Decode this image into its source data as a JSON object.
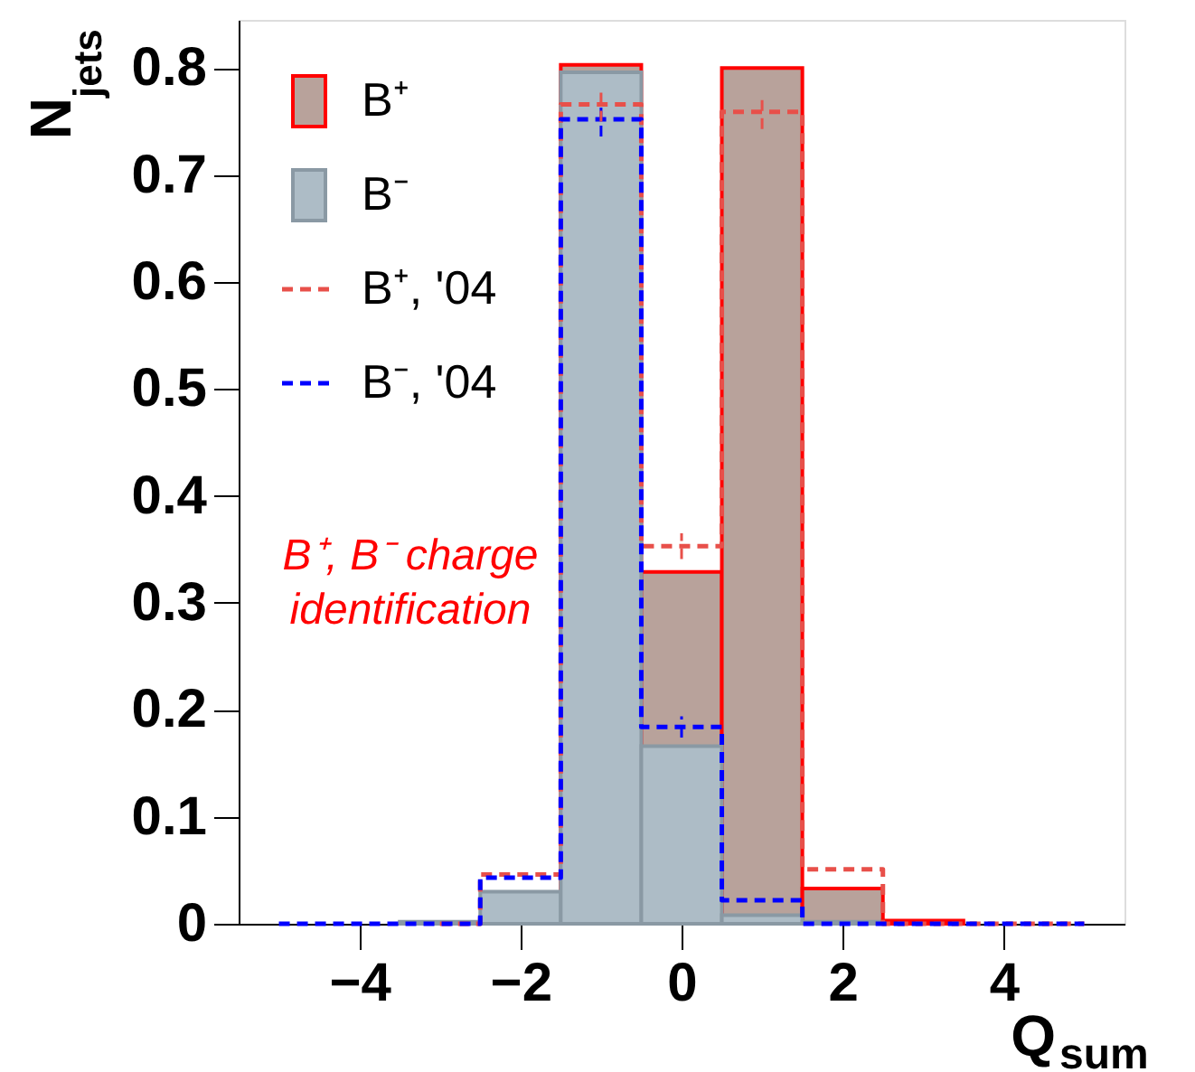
{
  "chart_data": {
    "type": "histogram",
    "xlabel": "Q$_{sum}$",
    "ylabel": "N$_{jets}$",
    "bins": [
      -5.5,
      -4.5,
      -3.5,
      -2.5,
      -1.5,
      -0.5,
      0.5,
      1.5,
      2.5,
      3.5,
      4.5,
      5.5
    ],
    "series": [
      {
        "name": "B⁺",
        "color": "#b8a29b",
        "values": [
          null,
          null,
          null,
          null,
          0.803,
          0.329,
          0.8,
          0.033,
          0.003,
          null,
          null
        ]
      },
      {
        "name": "B⁻",
        "color": "#adbcc6",
        "values": [
          null,
          null,
          0.002,
          0.03,
          0.796,
          0.166,
          0.008,
          0.002,
          null,
          null,
          null
        ]
      },
      {
        "name": "B⁺, '04",
        "type": "step",
        "x": [
          -3,
          -2,
          -1,
          0,
          1,
          2,
          3,
          4,
          5
        ],
        "color": "#e8504a",
        "line_style": "dashed",
        "values": [
          0,
          0.046,
          0.766,
          0.353,
          0.759,
          0.051,
          0,
          0,
          0
        ],
        "errors": [
          null,
          null,
          0.016,
          0.012,
          0.016,
          null,
          null,
          null,
          null
        ]
      },
      {
        "name": "B⁻, '04",
        "type": "step",
        "x": [
          -5,
          -4,
          -3,
          -2,
          -1,
          0,
          1,
          2,
          3,
          4,
          5
        ],
        "color": "#0000ff",
        "line_style": "dashed",
        "values": [
          0,
          0,
          0,
          0.043,
          0.752,
          0.184,
          0.022,
          0,
          0,
          0,
          0
        ],
        "errors": [
          null,
          null,
          null,
          null,
          0.016,
          0.01,
          null,
          null,
          null,
          null,
          null
        ]
      }
    ],
    "xlim": [
      -5.5,
      5.5
    ],
    "xticks": [
      -4,
      -2,
      0,
      2,
      4
    ],
    "ylim": [
      0,
      0.845
    ],
    "yticks": [
      0,
      0.1,
      0.2,
      0.3,
      0.4,
      0.5,
      0.6,
      0.7,
      0.8
    ],
    "grid": false,
    "legend": "top left",
    "annotations": [
      "B⁺, B⁻ charge\nidentification"
    ]
  }
}
